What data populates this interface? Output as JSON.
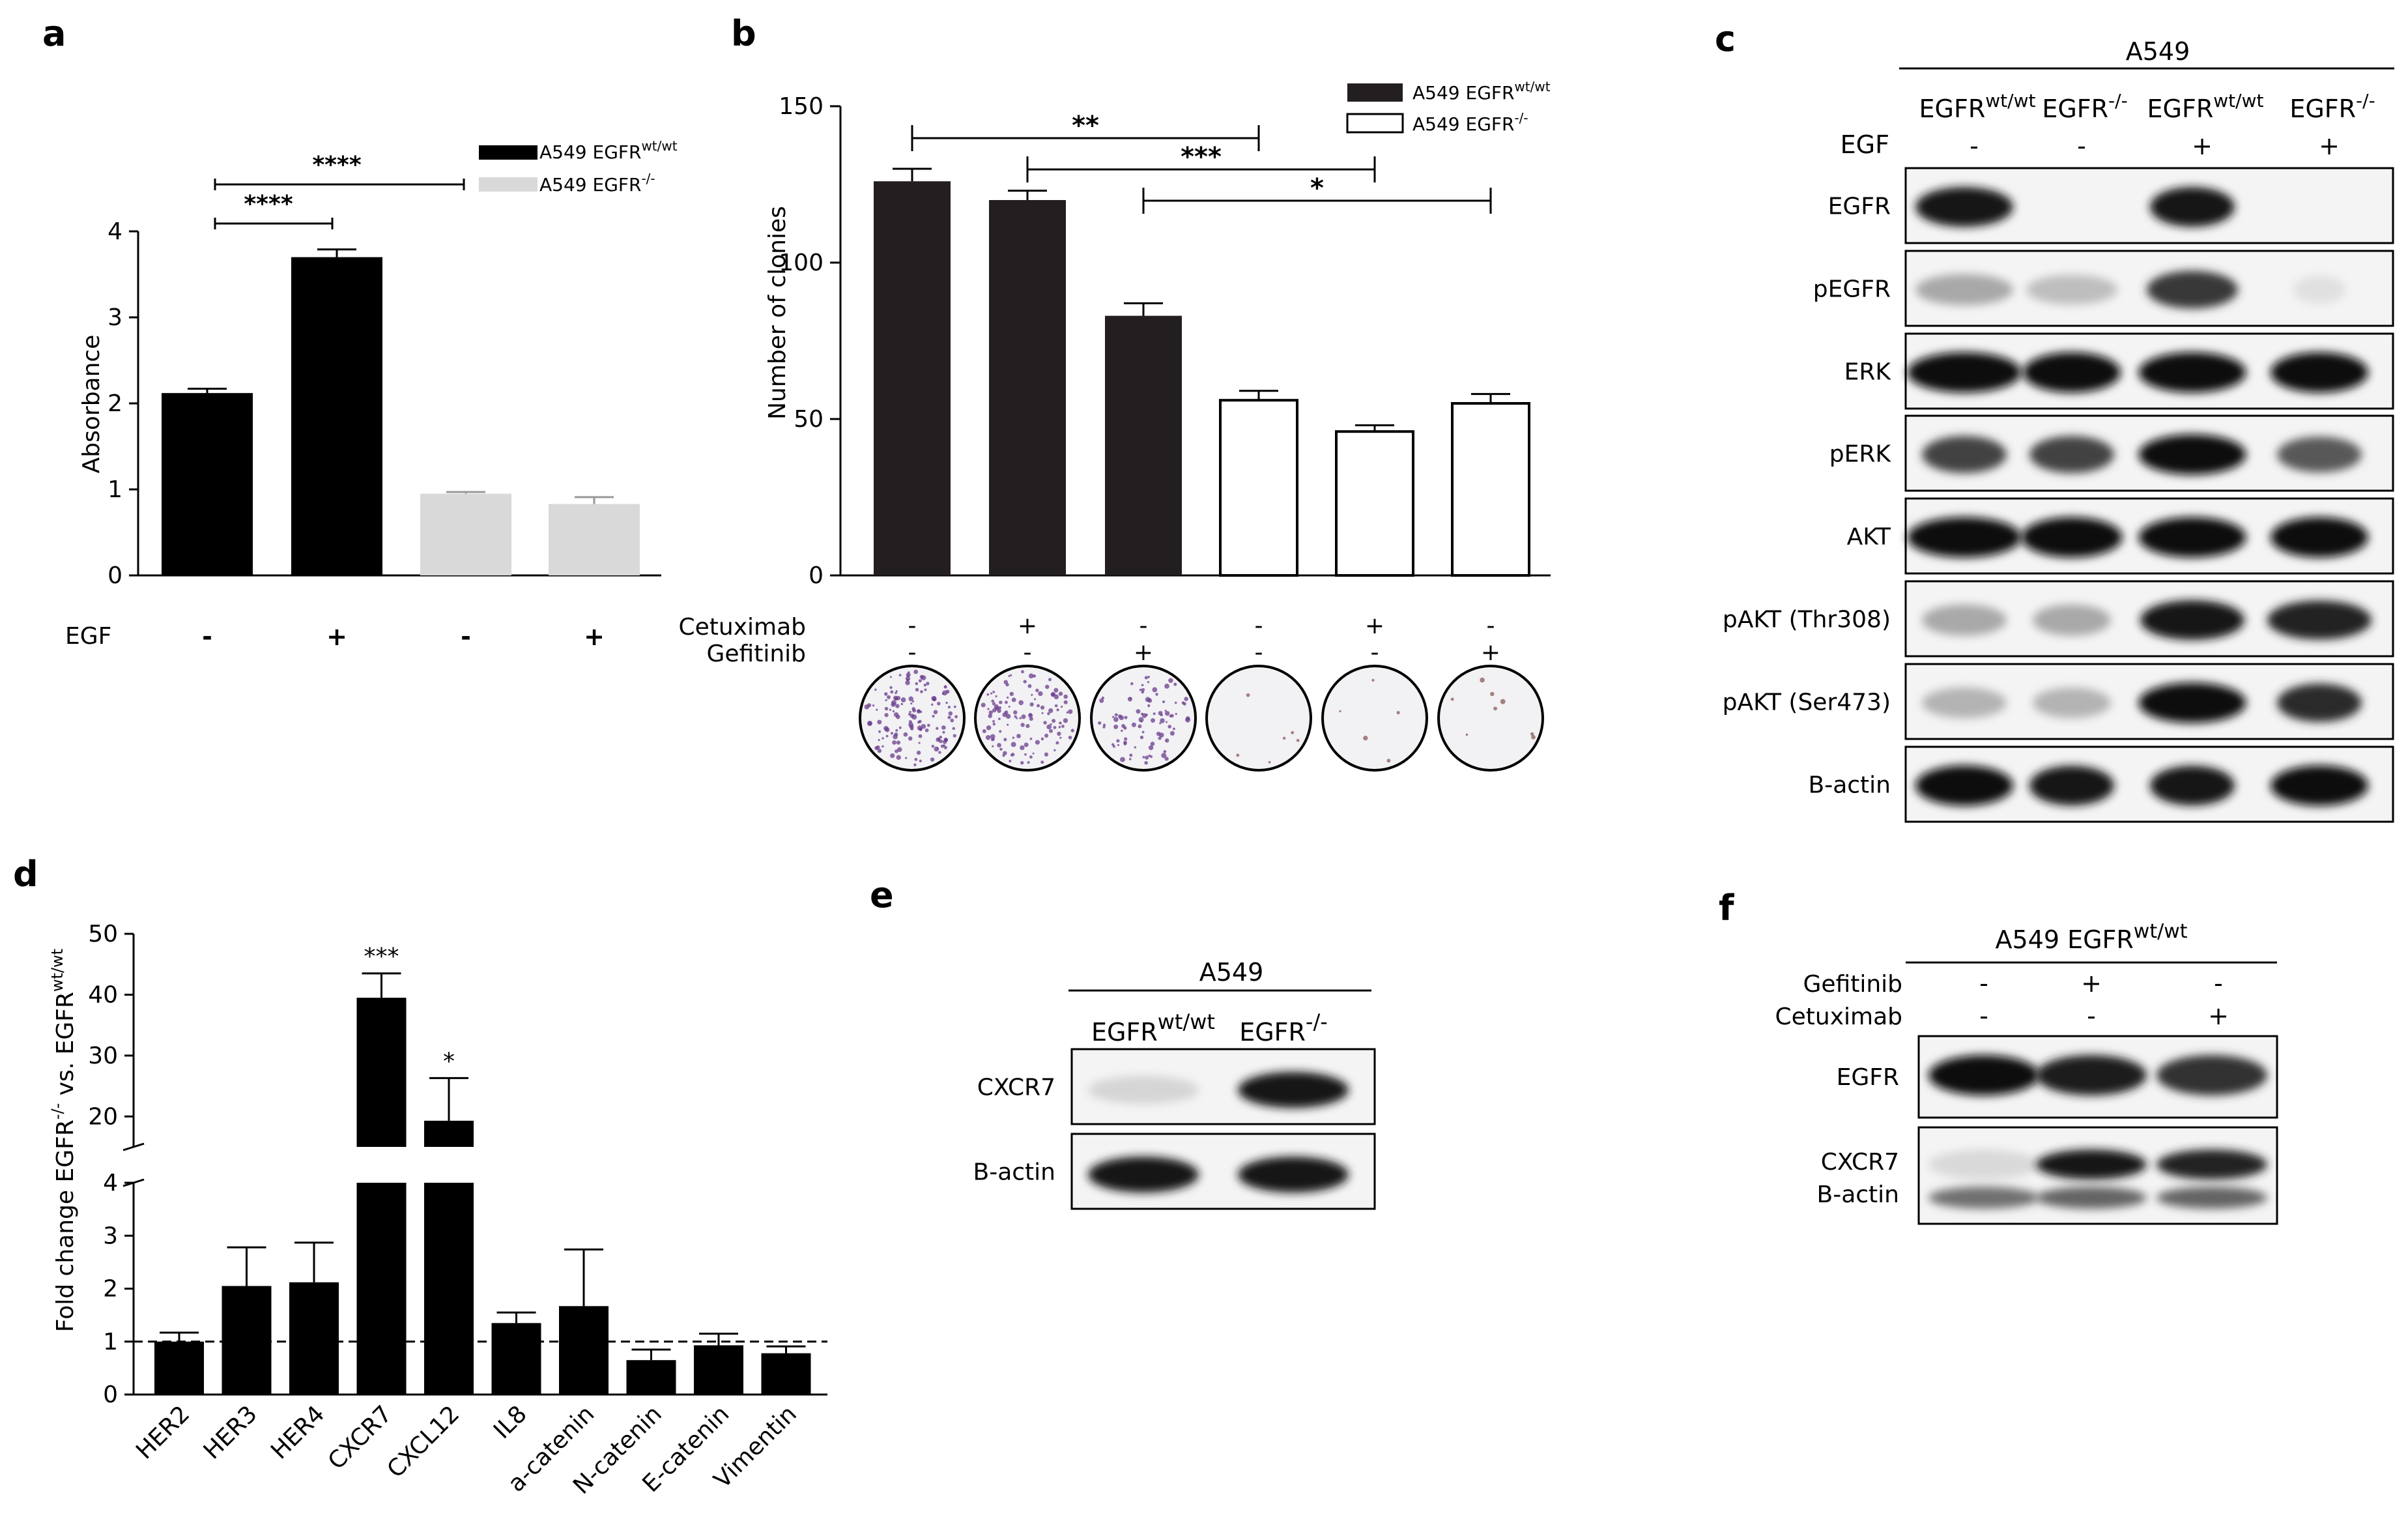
{
  "panels": {
    "a": {
      "letter": "a",
      "chart_data": {
        "type": "bar",
        "categories": [
          "A549 EGFR wt/wt -EGF",
          "A549 EGFR wt/wt +EGF",
          "A549 EGFR-/- -EGF",
          "A549 EGFR-/- +EGF"
        ],
        "values": [
          2.12,
          3.7,
          0.95,
          0.83
        ],
        "errors": [
          0.05,
          0.09,
          0.02,
          0.08
        ],
        "series": [
          {
            "name": "A549 EGFR",
            "sup": "wt/wt",
            "color": "#000000"
          },
          {
            "name": "A549 EGFR",
            "sup": "-/-",
            "color": "#d9d9d9"
          }
        ],
        "ylabel": "Absorbance",
        "ylim": [
          0,
          4
        ],
        "yticks": [
          "0",
          "1",
          "2",
          "3",
          "4"
        ],
        "row_label": "EGF",
        "row_values": [
          "-",
          "+",
          "-",
          "+"
        ],
        "significance": [
          {
            "from": 0,
            "to": 1,
            "label": "****"
          },
          {
            "from": 0,
            "to": 2,
            "label": "****"
          }
        ]
      }
    },
    "b": {
      "letter": "b",
      "chart_data": {
        "type": "bar",
        "values": [
          126,
          120,
          83,
          56,
          46,
          55
        ],
        "errors": [
          4,
          3,
          4,
          3,
          2,
          3
        ],
        "series": [
          {
            "name": "A549 EGFR",
            "sup": "wt/wt",
            "color": "#231f20"
          },
          {
            "name": "A549 EGFR",
            "sup": "-/-",
            "color": "#ffffff"
          }
        ],
        "ylabel": "Number of clonies",
        "ylim": [
          0,
          150
        ],
        "yticks": [
          "0",
          "50",
          "100",
          "150"
        ],
        "rows": [
          {
            "label": "Cetuximab",
            "values": [
              "-",
              "+",
              "-",
              "-",
              "+",
              "-"
            ]
          },
          {
            "label": "Gefitinib",
            "values": [
              "-",
              "-",
              "+",
              "-",
              "-",
              "+"
            ]
          }
        ],
        "significance": [
          {
            "from": 0,
            "to": 3,
            "label": "**"
          },
          {
            "from": 1,
            "to": 4,
            "label": "***"
          },
          {
            "from": 2,
            "to": 5,
            "label": "*"
          }
        ]
      }
    },
    "c": {
      "letter": "c",
      "cell_line": "A549",
      "cols": [
        {
          "egfr": "EGFR",
          "sup": "wt/wt",
          "egf": "-"
        },
        {
          "egfr": "EGFR",
          "sup": "-/-",
          "egf": "-"
        },
        {
          "egfr": "EGFR",
          "sup": "wt/wt",
          "egf": "+"
        },
        {
          "egfr": "EGFR",
          "sup": "-/-",
          "egf": "+"
        }
      ],
      "egf_label": "EGF",
      "rows": [
        "EGFR",
        "pEGFR",
        "ERK",
        "pERK",
        "AKT",
        "pAKT (Thr308)",
        "pAKT (Ser473)",
        "B-actin"
      ]
    },
    "d": {
      "letter": "d",
      "chart_data": {
        "type": "bar",
        "categories": [
          "HER2",
          "HER3",
          "HER4",
          "CXCR7",
          "CXCL12",
          "IL8",
          "a-catenin",
          "N-catenin",
          "E-catenin",
          "Vimentin"
        ],
        "values": [
          1.0,
          2.05,
          2.12,
          39.5,
          19.3,
          1.35,
          1.67,
          0.65,
          0.93,
          0.78
        ],
        "errors": [
          0.17,
          0.73,
          0.75,
          4.0,
          7.0,
          0.2,
          1.07,
          0.2,
          0.22,
          0.13
        ],
        "ylabel_main": "Fold change EGFR",
        "ylabel_sup1": "-/-",
        "ylabel_mid": " vs. EGFR",
        "ylabel_sup2": "wt/wt",
        "lower_ylim": [
          0,
          4
        ],
        "upper_ylim": [
          15,
          50
        ],
        "lower_ticks": [
          "0",
          "1",
          "2",
          "3",
          "4"
        ],
        "upper_ticks": [
          "20",
          "30",
          "40",
          "50"
        ],
        "reference_line": 1,
        "significance": [
          {
            "bar": 3,
            "label": "***"
          },
          {
            "bar": 4,
            "label": "*"
          }
        ]
      }
    },
    "e": {
      "letter": "e",
      "cell_line": "A549",
      "cols": [
        {
          "egfr": "EGFR",
          "sup": "wt/wt"
        },
        {
          "egfr": "EGFR",
          "sup": "-/-"
        }
      ],
      "rows": [
        "CXCR7",
        "B-actin"
      ]
    },
    "f": {
      "letter": "f",
      "header": "A549 EGFR",
      "header_sup": "wt/wt",
      "treatments": [
        {
          "label": "Gefitinib",
          "values": [
            "-",
            "+",
            "-"
          ]
        },
        {
          "label": "Cetuximab",
          "values": [
            "-",
            "-",
            "+"
          ]
        }
      ],
      "rows": [
        "EGFR",
        "CXCR7",
        "B-actin"
      ]
    }
  }
}
